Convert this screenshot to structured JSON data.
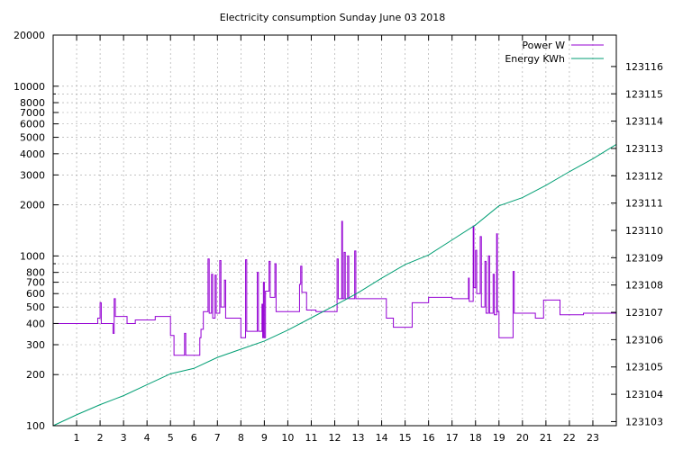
{
  "chart_data": {
    "type": "line",
    "title": "Electricity consumption Sunday June 03 2018",
    "xlabel": "",
    "ylabel": "",
    "y2label": "",
    "xlim": [
      0,
      24
    ],
    "ylim": [
      100,
      20000
    ],
    "yscale": "log",
    "y2lim": [
      123102.85,
      123117.15
    ],
    "grid": true,
    "legend_position": "top-right",
    "x_ticks": [
      1,
      2,
      3,
      4,
      5,
      6,
      7,
      8,
      9,
      10,
      11,
      12,
      13,
      14,
      15,
      16,
      17,
      18,
      19,
      20,
      21,
      22,
      23
    ],
    "y_ticks": [
      {
        "v": 100,
        "label": "100",
        "major": true
      },
      {
        "v": 200,
        "label": "200",
        "major": true
      },
      {
        "v": 300,
        "label": "300",
        "major": true
      },
      {
        "v": 400,
        "label": "400",
        "major": true
      },
      {
        "v": 500,
        "label": "500",
        "major": true
      },
      {
        "v": 600,
        "label": "600",
        "major": true
      },
      {
        "v": 700,
        "label": "700",
        "major": true
      },
      {
        "v": 800,
        "label": "800",
        "major": true
      },
      {
        "v": 900,
        "label": "",
        "major": false
      },
      {
        "v": 1000,
        "label": "1000",
        "major": true
      },
      {
        "v": 2000,
        "label": "2000",
        "major": true
      },
      {
        "v": 3000,
        "label": "3000",
        "major": true
      },
      {
        "v": 4000,
        "label": "4000",
        "major": true
      },
      {
        "v": 5000,
        "label": "5000",
        "major": true
      },
      {
        "v": 6000,
        "label": "6000",
        "major": true
      },
      {
        "v": 7000,
        "label": "7000",
        "major": true
      },
      {
        "v": 8000,
        "label": "8000",
        "major": true
      },
      {
        "v": 9000,
        "label": "",
        "major": false
      },
      {
        "v": 10000,
        "label": "10000",
        "major": true
      },
      {
        "v": 20000,
        "label": "20000",
        "major": true
      }
    ],
    "y2_ticks": [
      {
        "v": 123103,
        "label": "123103"
      },
      {
        "v": 123104,
        "label": "123104"
      },
      {
        "v": 123105,
        "label": "123105"
      },
      {
        "v": 123106,
        "label": "123106"
      },
      {
        "v": 123107,
        "label": "123107"
      },
      {
        "v": 123108,
        "label": "123108"
      },
      {
        "v": 123109,
        "label": "123109"
      },
      {
        "v": 123110,
        "label": "123110"
      },
      {
        "v": 123111,
        "label": "123111"
      },
      {
        "v": 123112,
        "label": "123112"
      },
      {
        "v": 123113,
        "label": "123113"
      },
      {
        "v": 123114,
        "label": "123114"
      },
      {
        "v": 123115,
        "label": "123115"
      },
      {
        "v": 123116,
        "label": "123116"
      }
    ],
    "series": [
      {
        "name": "Power W",
        "axis": "y",
        "step": true,
        "color": "#9400d3",
        "points": [
          [
            0,
            400
          ],
          [
            1.9,
            400
          ],
          [
            1.9,
            430
          ],
          [
            2.0,
            430
          ],
          [
            2.0,
            530
          ],
          [
            2.05,
            530
          ],
          [
            2.05,
            400
          ],
          [
            2.55,
            400
          ],
          [
            2.55,
            350
          ],
          [
            2.6,
            350
          ],
          [
            2.6,
            560
          ],
          [
            2.65,
            560
          ],
          [
            2.65,
            440
          ],
          [
            3.15,
            440
          ],
          [
            3.15,
            400
          ],
          [
            3.5,
            400
          ],
          [
            3.5,
            420
          ],
          [
            4.35,
            420
          ],
          [
            4.35,
            440
          ],
          [
            5.0,
            440
          ],
          [
            5.0,
            340
          ],
          [
            5.15,
            340
          ],
          [
            5.15,
            260
          ],
          [
            5.6,
            260
          ],
          [
            5.6,
            350
          ],
          [
            5.65,
            350
          ],
          [
            5.65,
            260
          ],
          [
            6.25,
            260
          ],
          [
            6.25,
            330
          ],
          [
            6.3,
            330
          ],
          [
            6.3,
            370
          ],
          [
            6.4,
            370
          ],
          [
            6.4,
            470
          ],
          [
            6.6,
            470
          ],
          [
            6.6,
            960
          ],
          [
            6.65,
            960
          ],
          [
            6.65,
            460
          ],
          [
            6.75,
            460
          ],
          [
            6.75,
            780
          ],
          [
            6.8,
            780
          ],
          [
            6.8,
            430
          ],
          [
            6.9,
            430
          ],
          [
            6.9,
            770
          ],
          [
            6.95,
            770
          ],
          [
            6.95,
            460
          ],
          [
            7.1,
            460
          ],
          [
            7.1,
            940
          ],
          [
            7.15,
            940
          ],
          [
            7.15,
            500
          ],
          [
            7.3,
            500
          ],
          [
            7.3,
            720
          ],
          [
            7.35,
            720
          ],
          [
            7.35,
            430
          ],
          [
            8.0,
            430
          ],
          [
            8.0,
            330
          ],
          [
            8.2,
            330
          ],
          [
            8.2,
            950
          ],
          [
            8.25,
            950
          ],
          [
            8.25,
            360
          ],
          [
            8.7,
            360
          ],
          [
            8.7,
            800
          ],
          [
            8.75,
            800
          ],
          [
            8.75,
            360
          ],
          [
            8.9,
            360
          ],
          [
            8.9,
            520
          ],
          [
            8.93,
            520
          ],
          [
            8.93,
            330
          ],
          [
            8.96,
            330
          ],
          [
            8.96,
            700
          ],
          [
            9.0,
            700
          ],
          [
            9.0,
            330
          ],
          [
            9.05,
            330
          ],
          [
            9.05,
            620
          ],
          [
            9.2,
            620
          ],
          [
            9.2,
            930
          ],
          [
            9.25,
            930
          ],
          [
            9.25,
            570
          ],
          [
            9.45,
            570
          ],
          [
            9.45,
            900
          ],
          [
            9.5,
            900
          ],
          [
            9.5,
            470
          ],
          [
            10.5,
            470
          ],
          [
            10.5,
            680
          ],
          [
            10.55,
            680
          ],
          [
            10.55,
            870
          ],
          [
            10.6,
            870
          ],
          [
            10.6,
            610
          ],
          [
            10.8,
            610
          ],
          [
            10.8,
            480
          ],
          [
            11.2,
            480
          ],
          [
            11.2,
            470
          ],
          [
            12.1,
            470
          ],
          [
            12.1,
            960
          ],
          [
            12.15,
            960
          ],
          [
            12.15,
            560
          ],
          [
            12.3,
            560
          ],
          [
            12.3,
            1600
          ],
          [
            12.33,
            1600
          ],
          [
            12.33,
            560
          ],
          [
            12.4,
            560
          ],
          [
            12.4,
            1050
          ],
          [
            12.45,
            1050
          ],
          [
            12.45,
            560
          ],
          [
            12.55,
            560
          ],
          [
            12.55,
            1000
          ],
          [
            12.6,
            1000
          ],
          [
            12.6,
            560
          ],
          [
            12.85,
            560
          ],
          [
            12.85,
            1070
          ],
          [
            12.9,
            1070
          ],
          [
            12.9,
            560
          ],
          [
            14.2,
            560
          ],
          [
            14.2,
            430
          ],
          [
            14.5,
            430
          ],
          [
            14.5,
            380
          ],
          [
            15.3,
            380
          ],
          [
            15.3,
            530
          ],
          [
            16.0,
            530
          ],
          [
            16.0,
            570
          ],
          [
            17.0,
            570
          ],
          [
            17.0,
            560
          ],
          [
            17.7,
            560
          ],
          [
            17.7,
            740
          ],
          [
            17.73,
            740
          ],
          [
            17.73,
            540
          ],
          [
            17.9,
            540
          ],
          [
            17.9,
            1500
          ],
          [
            17.93,
            1500
          ],
          [
            17.93,
            650
          ],
          [
            18.0,
            650
          ],
          [
            18.0,
            1080
          ],
          [
            18.05,
            1080
          ],
          [
            18.05,
            600
          ],
          [
            18.2,
            600
          ],
          [
            18.2,
            1300
          ],
          [
            18.25,
            1300
          ],
          [
            18.25,
            500
          ],
          [
            18.4,
            500
          ],
          [
            18.4,
            930
          ],
          [
            18.45,
            930
          ],
          [
            18.45,
            460
          ],
          [
            18.55,
            460
          ],
          [
            18.55,
            1000
          ],
          [
            18.6,
            1000
          ],
          [
            18.6,
            460
          ],
          [
            18.75,
            460
          ],
          [
            18.75,
            780
          ],
          [
            18.8,
            780
          ],
          [
            18.8,
            450
          ],
          [
            18.9,
            450
          ],
          [
            18.9,
            1350
          ],
          [
            18.93,
            1350
          ],
          [
            18.93,
            470
          ],
          [
            19.0,
            470
          ],
          [
            19.0,
            330
          ],
          [
            19.6,
            330
          ],
          [
            19.6,
            810
          ],
          [
            19.65,
            810
          ],
          [
            19.65,
            460
          ],
          [
            20.55,
            460
          ],
          [
            20.55,
            430
          ],
          [
            20.9,
            430
          ],
          [
            20.9,
            550
          ],
          [
            21.6,
            550
          ],
          [
            21.6,
            450
          ],
          [
            22.6,
            450
          ],
          [
            22.6,
            460
          ],
          [
            24,
            460
          ]
        ]
      },
      {
        "name": "Energy KWh",
        "axis": "y2",
        "step": false,
        "color": "#009e73",
        "points": [
          [
            0,
            123102.85
          ],
          [
            1,
            123103.25
          ],
          [
            2,
            123103.62
          ],
          [
            3,
            123103.95
          ],
          [
            4,
            123104.35
          ],
          [
            5,
            123104.75
          ],
          [
            6,
            123104.95
          ],
          [
            7,
            123105.35
          ],
          [
            8,
            123105.65
          ],
          [
            9,
            123105.95
          ],
          [
            10,
            123106.35
          ],
          [
            11,
            123106.8
          ],
          [
            12,
            123107.25
          ],
          [
            13,
            123107.72
          ],
          [
            14,
            123108.25
          ],
          [
            15,
            123108.75
          ],
          [
            16,
            123109.1
          ],
          [
            17,
            123109.65
          ],
          [
            18,
            123110.2
          ],
          [
            19,
            123110.9
          ],
          [
            20,
            123111.2
          ],
          [
            21,
            123111.65
          ],
          [
            22,
            123112.15
          ],
          [
            23,
            123112.62
          ],
          [
            24,
            123113.15
          ]
        ]
      }
    ]
  }
}
